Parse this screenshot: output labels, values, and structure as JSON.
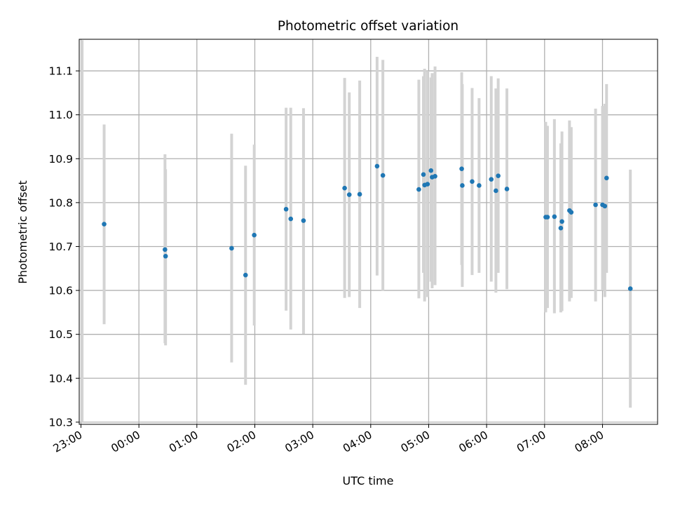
{
  "chart_data": {
    "type": "scatter",
    "title": "Photometric offset variation",
    "xlabel": "UTC time",
    "ylabel": "Photometric offset",
    "x_unit": "hours since 00:00 UTC (negative = previous day)",
    "xlim": [
      -1.03,
      8.95
    ],
    "ylim": [
      10.295,
      11.172
    ],
    "grid": true,
    "colors": {
      "point": "#1f77b4",
      "errorbar": "#d3d3d3",
      "grid": "#b0b0b0"
    },
    "x_ticks": [
      {
        "value": -1,
        "label": "23:00"
      },
      {
        "value": 0,
        "label": "00:00"
      },
      {
        "value": 1,
        "label": "01:00"
      },
      {
        "value": 2,
        "label": "02:00"
      },
      {
        "value": 3,
        "label": "03:00"
      },
      {
        "value": 4,
        "label": "04:00"
      },
      {
        "value": 5,
        "label": "05:00"
      },
      {
        "value": 6,
        "label": "06:00"
      },
      {
        "value": 7,
        "label": "07:00"
      },
      {
        "value": 8,
        "label": "08:00"
      }
    ],
    "y_ticks": [
      {
        "value": 10.3,
        "label": "10.3"
      },
      {
        "value": 10.4,
        "label": "10.4"
      },
      {
        "value": 10.5,
        "label": "10.5"
      },
      {
        "value": 10.6,
        "label": "10.6"
      },
      {
        "value": 10.7,
        "label": "10.7"
      },
      {
        "value": 10.8,
        "label": "10.8"
      },
      {
        "value": 10.9,
        "label": "10.9"
      },
      {
        "value": 11.0,
        "label": "11.0"
      },
      {
        "value": 11.1,
        "label": "11.1"
      }
    ],
    "error_bar_only": [
      {
        "x": -0.98,
        "lo": 10.3,
        "hi": 11.17
      }
    ],
    "points": [
      {
        "x": -0.6,
        "y": 10.751,
        "lo": 10.523,
        "hi": 10.978
      },
      {
        "x": 0.45,
        "y": 10.693,
        "lo": 10.48,
        "hi": 10.91
      },
      {
        "x": 0.46,
        "y": 10.678,
        "lo": 10.475,
        "hi": 10.876
      },
      {
        "x": 1.6,
        "y": 10.696,
        "lo": 10.436,
        "hi": 10.957
      },
      {
        "x": 1.84,
        "y": 10.635,
        "lo": 10.385,
        "hi": 10.884
      },
      {
        "x": 1.99,
        "y": 10.726,
        "lo": 10.52,
        "hi": 10.932
      },
      {
        "x": 2.54,
        "y": 10.785,
        "lo": 10.554,
        "hi": 11.016
      },
      {
        "x": 2.62,
        "y": 10.763,
        "lo": 10.511,
        "hi": 11.016
      },
      {
        "x": 2.84,
        "y": 10.759,
        "lo": 10.501,
        "hi": 11.015
      },
      {
        "x": 3.55,
        "y": 10.833,
        "lo": 10.583,
        "hi": 11.084
      },
      {
        "x": 3.63,
        "y": 10.818,
        "lo": 10.585,
        "hi": 11.051
      },
      {
        "x": 3.81,
        "y": 10.819,
        "lo": 10.56,
        "hi": 11.078
      },
      {
        "x": 4.11,
        "y": 10.883,
        "lo": 10.634,
        "hi": 11.132
      },
      {
        "x": 4.21,
        "y": 10.862,
        "lo": 10.599,
        "hi": 11.125
      },
      {
        "x": 4.83,
        "y": 10.83,
        "lo": 10.582,
        "hi": 11.08
      },
      {
        "x": 4.91,
        "y": 10.864,
        "lo": 10.64,
        "hi": 11.088
      },
      {
        "x": 4.93,
        "y": 10.84,
        "lo": 10.575,
        "hi": 11.105
      },
      {
        "x": 4.98,
        "y": 10.842,
        "lo": 10.585,
        "hi": 11.1
      },
      {
        "x": 5.04,
        "y": 10.873,
        "lo": 10.62,
        "hi": 11.085
      },
      {
        "x": 5.06,
        "y": 10.858,
        "lo": 10.605,
        "hi": 11.095
      },
      {
        "x": 5.11,
        "y": 10.86,
        "lo": 10.612,
        "hi": 11.11
      },
      {
        "x": 5.57,
        "y": 10.877,
        "lo": 10.658,
        "hi": 11.097
      },
      {
        "x": 5.58,
        "y": 10.839,
        "lo": 10.608,
        "hi": 11.07
      },
      {
        "x": 5.75,
        "y": 10.848,
        "lo": 10.635,
        "hi": 11.061
      },
      {
        "x": 5.87,
        "y": 10.839,
        "lo": 10.64,
        "hi": 11.038
      },
      {
        "x": 6.08,
        "y": 10.853,
        "lo": 10.62,
        "hi": 11.088
      },
      {
        "x": 6.16,
        "y": 10.827,
        "lo": 10.595,
        "hi": 11.06
      },
      {
        "x": 6.2,
        "y": 10.861,
        "lo": 10.64,
        "hi": 11.083
      },
      {
        "x": 6.35,
        "y": 10.831,
        "lo": 10.603,
        "hi": 11.06
      },
      {
        "x": 7.02,
        "y": 10.767,
        "lo": 10.55,
        "hi": 10.984
      },
      {
        "x": 7.05,
        "y": 10.767,
        "lo": 10.56,
        "hi": 10.975
      },
      {
        "x": 7.17,
        "y": 10.768,
        "lo": 10.548,
        "hi": 10.99
      },
      {
        "x": 7.28,
        "y": 10.742,
        "lo": 10.55,
        "hi": 10.935
      },
      {
        "x": 7.3,
        "y": 10.757,
        "lo": 10.553,
        "hi": 10.962
      },
      {
        "x": 7.43,
        "y": 10.782,
        "lo": 10.575,
        "hi": 10.987
      },
      {
        "x": 7.46,
        "y": 10.778,
        "lo": 10.583,
        "hi": 10.972
      },
      {
        "x": 7.88,
        "y": 10.795,
        "lo": 10.575,
        "hi": 11.014
      },
      {
        "x": 8.0,
        "y": 10.795,
        "lo": 10.6,
        "hi": 11.02
      },
      {
        "x": 8.04,
        "y": 10.792,
        "lo": 10.585,
        "hi": 11.025
      },
      {
        "x": 8.07,
        "y": 10.856,
        "lo": 10.64,
        "hi": 11.07
      },
      {
        "x": 8.48,
        "y": 10.604,
        "lo": 10.333,
        "hi": 10.875
      }
    ]
  }
}
